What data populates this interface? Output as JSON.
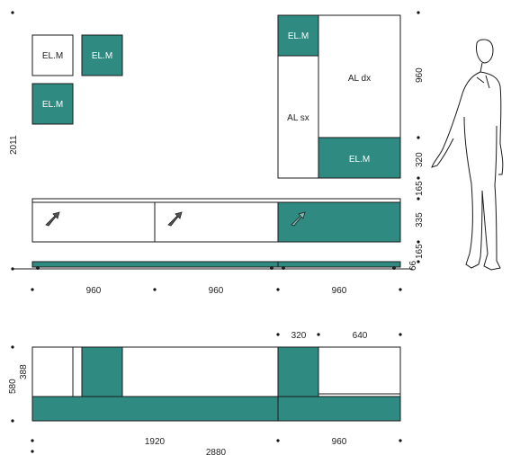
{
  "colors": {
    "teal": "#2f8a82",
    "outline": "#1a1a1a",
    "text": "#222222"
  },
  "modules": {
    "wall_1": "EL.M",
    "wall_2": "EL.M",
    "wall_3": "EL.M",
    "tall_top": "EL.M",
    "tall_bottom": "EL.M",
    "al_sx": "AL sx",
    "al_dx": "AL dx"
  },
  "base_icons": [
    "flap-arrow-icon",
    "flap-arrow-icon",
    "flap-arrow-icon"
  ],
  "dimensions": {
    "total_height": "2011",
    "right_960": "960",
    "right_320": "320",
    "right_165_top": "165",
    "right_335": "335",
    "right_165_bottom": "165",
    "right_66": "66",
    "bottom_widths": [
      "960",
      "960",
      "960"
    ],
    "plan_320": "320",
    "plan_640": "640",
    "plan_580": "580",
    "plan_388": "388",
    "plan_1920": "1920",
    "plan_2880": "2880",
    "plan_960": "960"
  }
}
